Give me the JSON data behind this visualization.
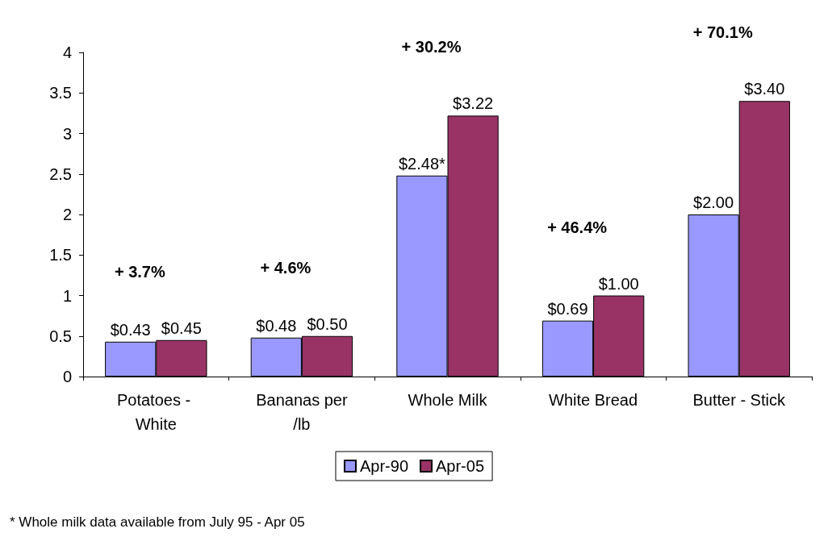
{
  "chart_data": {
    "type": "bar",
    "categories": [
      "Potatoes - White",
      "Bananas per/lb",
      "Whole Milk",
      "White Bread",
      "Butter - Stick"
    ],
    "series": [
      {
        "name": "Apr-90",
        "color": "#9999ff",
        "values": [
          0.43,
          0.48,
          2.48,
          0.69,
          2.0
        ],
        "value_labels": [
          "$0.43",
          "$0.48",
          "$2.48*",
          "$0.69",
          "$2.00"
        ]
      },
      {
        "name": "Apr-05",
        "color": "#993366",
        "values": [
          0.45,
          0.5,
          3.22,
          1.0,
          3.4
        ],
        "value_labels": [
          "$0.45",
          "$0.50",
          "$3.22",
          "$1.00",
          "$3.40"
        ]
      }
    ],
    "ylim": [
      0,
      4
    ],
    "yticks": [
      0,
      0.5,
      1,
      1.5,
      2,
      2.5,
      3,
      3.5,
      4
    ],
    "grid": false,
    "legend": "bottom",
    "annotations": [
      "+ 3.7%",
      "+ 4.6%",
      "+ 30.2%",
      "+ 46.4%",
      "+ 70.1%",
      "* Whole milk data available from July 95 - Apr 05"
    ]
  }
}
